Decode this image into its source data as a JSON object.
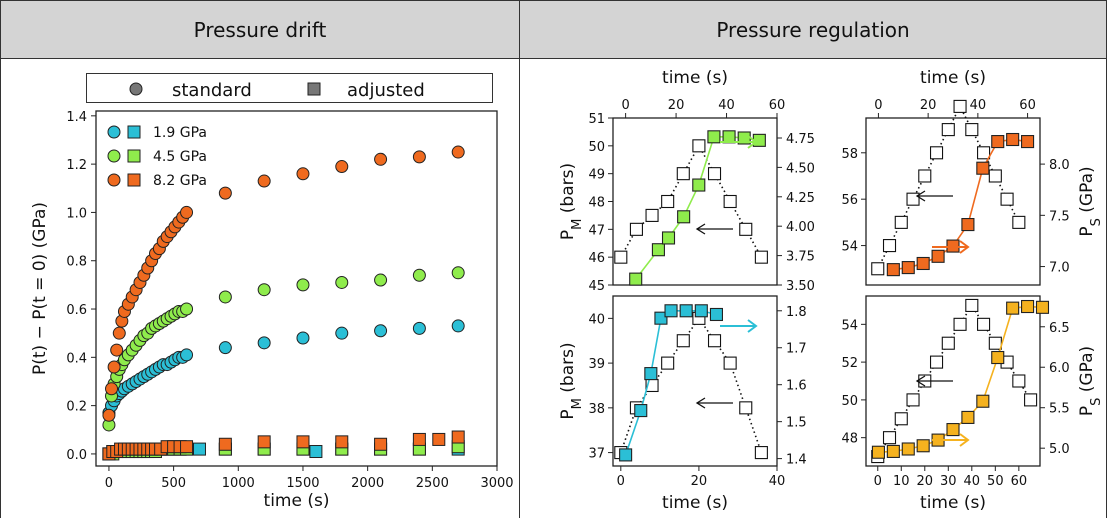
{
  "headers": {
    "left": "Pressure drift",
    "right": "Pressure regulation"
  },
  "colors": {
    "cyan": "#2bbfd6",
    "green": "#8fec4c",
    "orange": "#ef6a1f",
    "amber": "#f5b21f",
    "header_bg": "#d4d4d4"
  },
  "chart_data": [
    {
      "type": "scatter",
      "xlabel": "time (s)",
      "ylabel": "P(t) − P(t = 0) (GPa)",
      "xlim": [
        -100,
        3000
      ],
      "ylim": [
        -0.05,
        1.42
      ],
      "xticks": [
        0,
        500,
        1000,
        1500,
        2000,
        2500,
        3000
      ],
      "yticks": [
        0.0,
        0.2,
        0.4,
        0.6,
        0.8,
        1.0,
        1.2,
        1.4
      ],
      "marker_legend": [
        {
          "label": "standard",
          "marker": "circle"
        },
        {
          "label": "adjusted",
          "marker": "square"
        }
      ],
      "series": [
        {
          "name": "1.9 GPa",
          "color": "#2bbfd6",
          "standard": {
            "x": [
              0,
              20,
              40,
              60,
              80,
              100,
              120,
              150,
              180,
              210,
              240,
              270,
              300,
              330,
              360,
              390,
              420,
              450,
              480,
              510,
              540,
              570,
              600,
              900,
              1200,
              1500,
              1800,
              2100,
              2400,
              2700
            ],
            "y": [
              0.17,
              0.2,
              0.22,
              0.24,
              0.25,
              0.26,
              0.27,
              0.28,
              0.29,
              0.3,
              0.31,
              0.32,
              0.33,
              0.34,
              0.35,
              0.36,
              0.37,
              0.37,
              0.38,
              0.39,
              0.4,
              0.4,
              0.41,
              0.44,
              0.46,
              0.48,
              0.5,
              0.51,
              0.52,
              0.53
            ]
          },
          "adjusted": {
            "x": [
              0,
              30,
              60,
              90,
              120,
              150,
              180,
              210,
              240,
              270,
              300,
              330,
              360,
              400,
              450,
              500,
              550,
              600,
              700,
              900,
              1200,
              1500,
              1600,
              1800,
              2100,
              2400,
              2700
            ],
            "y": [
              0.0,
              0.01,
              0.01,
              0.01,
              0.01,
              0.01,
              0.01,
              0.01,
              0.01,
              0.01,
              0.01,
              0.02,
              0.02,
              0.02,
              0.02,
              0.02,
              0.02,
              0.02,
              0.02,
              0.02,
              0.02,
              0.02,
              0.01,
              0.02,
              0.02,
              0.02,
              0.02
            ]
          }
        },
        {
          "name": "4.5 GPa",
          "color": "#8fec4c",
          "standard": {
            "x": [
              0,
              20,
              40,
              60,
              80,
              100,
              120,
              150,
              180,
              210,
              240,
              270,
              300,
              330,
              360,
              390,
              420,
              450,
              480,
              510,
              540,
              570,
              600,
              900,
              1200,
              1500,
              1800,
              2100,
              2400,
              2700
            ],
            "y": [
              0.12,
              0.24,
              0.29,
              0.32,
              0.35,
              0.37,
              0.39,
              0.41,
              0.43,
              0.45,
              0.47,
              0.49,
              0.5,
              0.52,
              0.53,
              0.54,
              0.55,
              0.56,
              0.57,
              0.58,
              0.59,
              0.59,
              0.6,
              0.65,
              0.68,
              0.7,
              0.71,
              0.72,
              0.74,
              0.75
            ]
          },
          "adjusted": {
            "x": [
              0,
              30,
              60,
              90,
              120,
              150,
              180,
              210,
              240,
              270,
              300,
              330,
              360,
              400,
              450,
              500,
              550,
              600,
              900,
              1200,
              1500,
              1800,
              2100,
              2400,
              2700
            ],
            "y": [
              0.0,
              0.0,
              0.01,
              0.01,
              0.01,
              0.01,
              0.01,
              0.01,
              0.01,
              0.01,
              0.01,
              0.01,
              0.01,
              0.02,
              0.02,
              0.02,
              0.02,
              0.02,
              0.02,
              0.02,
              0.02,
              0.02,
              0.02,
              0.02,
              0.03
            ]
          }
        },
        {
          "name": "8.2 GPa",
          "color": "#ef6a1f",
          "standard": {
            "x": [
              0,
              20,
              40,
              60,
              80,
              100,
              120,
              150,
              180,
              210,
              240,
              270,
              300,
              330,
              360,
              390,
              420,
              450,
              480,
              510,
              540,
              570,
              600,
              900,
              1200,
              1500,
              1800,
              2100,
              2400,
              2700
            ],
            "y": [
              0.16,
              0.27,
              0.36,
              0.43,
              0.5,
              0.55,
              0.59,
              0.62,
              0.65,
              0.68,
              0.71,
              0.74,
              0.77,
              0.8,
              0.83,
              0.85,
              0.88,
              0.9,
              0.92,
              0.94,
              0.96,
              0.98,
              1.0,
              1.08,
              1.13,
              1.16,
              1.19,
              1.22,
              1.23,
              1.25
            ]
          },
          "adjusted": {
            "x": [
              0,
              30,
              60,
              90,
              120,
              150,
              180,
              210,
              240,
              270,
              300,
              330,
              360,
              400,
              450,
              500,
              550,
              600,
              900,
              1200,
              1500,
              1800,
              2100,
              2400,
              2550,
              2700
            ],
            "y": [
              0.0,
              0.01,
              0.01,
              0.02,
              0.02,
              0.02,
              0.02,
              0.02,
              0.02,
              0.02,
              0.02,
              0.02,
              0.02,
              0.02,
              0.03,
              0.03,
              0.03,
              0.03,
              0.04,
              0.05,
              0.05,
              0.05,
              0.04,
              0.06,
              0.06,
              0.07
            ]
          }
        }
      ]
    },
    {
      "type": "line",
      "top_xlabel": "time (s)",
      "xlabel": "",
      "ylabel_left": "P_M (bars)",
      "ylabel_right": "",
      "bottom_xlim": [
        -2,
        40
      ],
      "top_xlim": [
        -5,
        60
      ],
      "ylim_left": [
        45,
        51
      ],
      "ylim_right": [
        3.5,
        4.92
      ],
      "top_xticks": [
        0,
        20,
        40,
        60
      ],
      "yticks_left": [
        45,
        46,
        47,
        48,
        49,
        50,
        51
      ],
      "yticks_right": [
        3.5,
        3.75,
        4.0,
        4.25,
        4.5,
        4.75
      ],
      "pm": {
        "x": [
          0,
          4,
          8,
          12,
          16,
          20,
          24,
          28,
          32,
          36
        ],
        "y": [
          46,
          47,
          47.5,
          48,
          49,
          50,
          49,
          48,
          47,
          46
        ]
      },
      "ps": {
        "color": "#8fec4c",
        "x": [
          4,
          13,
          17,
          23,
          29,
          35,
          41,
          47,
          53
        ],
        "y": [
          3.55,
          3.8,
          3.9,
          4.08,
          4.35,
          4.76,
          4.76,
          4.75,
          4.73
        ]
      }
    },
    {
      "type": "line",
      "top_xlabel": "time (s)",
      "xlabel": "",
      "ylabel_left": "",
      "ylabel_right": "P_S (GPa)",
      "bottom_xlim": [
        -5,
        69
      ],
      "top_xlim": [
        -5,
        65
      ],
      "ylim_left": [
        52.3,
        59.5
      ],
      "ylim_right": [
        6.82,
        8.45
      ],
      "top_xticks": [
        0,
        20,
        40,
        60
      ],
      "yticks_left": [
        54,
        56,
        58
      ],
      "yticks_right": [
        7.0,
        7.5,
        8.0
      ],
      "pm": {
        "x": [
          0,
          5,
          10,
          15,
          20,
          25,
          30,
          35,
          40,
          45,
          50,
          55,
          60
        ],
        "y": [
          53,
          54,
          55,
          56,
          57,
          58,
          59,
          60,
          59,
          58,
          57,
          56,
          55
        ]
      },
      "ps": {
        "color": "#ef6a1f",
        "x": [
          6,
          12,
          18,
          24,
          30,
          36,
          42,
          48,
          54,
          60
        ],
        "y": [
          6.97,
          6.99,
          7.03,
          7.1,
          7.2,
          7.41,
          7.96,
          8.22,
          8.24,
          8.22
        ]
      }
    },
    {
      "type": "line",
      "top_xlabel": "",
      "xlabel": "time (s)",
      "ylabel_left": "P_M (bars)",
      "ylabel_right": "",
      "bottom_xlim": [
        -2,
        40
      ],
      "top_xlim": [
        -5,
        60
      ],
      "ylim_left": [
        36.7,
        40.5
      ],
      "ylim_right": [
        1.38,
        1.84
      ],
      "bottom_xticks": [
        0,
        20,
        40
      ],
      "yticks_left": [
        37,
        38,
        39,
        40
      ],
      "yticks_right": [
        1.4,
        1.5,
        1.6,
        1.7,
        1.8
      ],
      "pm": {
        "x": [
          0,
          4,
          8,
          12,
          16,
          20,
          24,
          28,
          32,
          36
        ],
        "y": [
          37,
          38,
          38.5,
          39,
          39.5,
          40,
          39.5,
          39,
          38,
          37
        ]
      },
      "ps": {
        "color": "#2bbfd6",
        "x": [
          0,
          6,
          10,
          14,
          18,
          24,
          30,
          36
        ],
        "y": [
          1.41,
          1.53,
          1.63,
          1.78,
          1.8,
          1.8,
          1.8,
          1.79
        ]
      }
    },
    {
      "type": "line",
      "top_xlabel": "",
      "xlabel": "time (s)",
      "ylabel_left": "",
      "ylabel_right": "P_S (GPa)",
      "bottom_xlim": [
        -5,
        69
      ],
      "top_xlim": [
        -5,
        65
      ],
      "ylim_left": [
        46.5,
        55.5
      ],
      "ylim_right": [
        4.78,
        6.88
      ],
      "bottom_xticks": [
        0,
        10,
        20,
        30,
        40,
        50,
        60
      ],
      "yticks_left": [
        48,
        50,
        52,
        54
      ],
      "yticks_right": [
        5.0,
        5.5,
        6.0,
        6.5
      ],
      "pm": {
        "x": [
          0,
          5,
          10,
          15,
          20,
          25,
          30,
          35,
          40,
          45,
          50,
          55,
          60,
          65
        ],
        "y": [
          47,
          48,
          49,
          50,
          51,
          52,
          53,
          54,
          55,
          54,
          53,
          52,
          51,
          50
        ]
      },
      "ps": {
        "color": "#f5b21f",
        "x": [
          0,
          6,
          12,
          18,
          24,
          30,
          36,
          42,
          48,
          54,
          60,
          66
        ],
        "y": [
          4.95,
          4.96,
          4.99,
          5.03,
          5.1,
          5.23,
          5.38,
          5.58,
          6.12,
          6.73,
          6.75,
          6.74
        ]
      }
    }
  ]
}
